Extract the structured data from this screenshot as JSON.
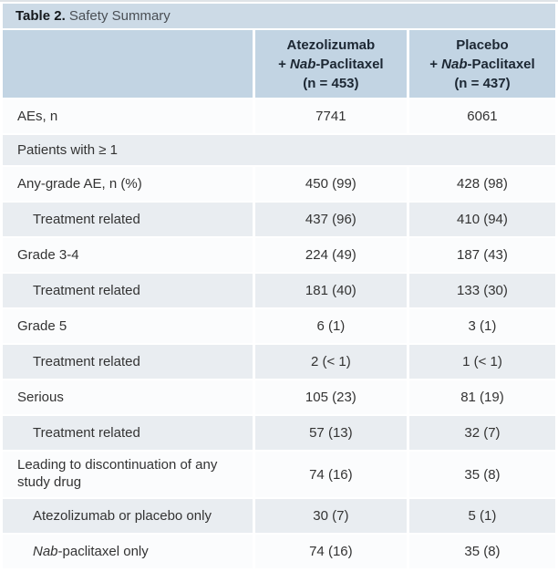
{
  "table": {
    "title": {
      "bold": "Table 2.",
      "rest": " Safety Summary"
    },
    "columns": [
      {
        "line1": "Atezolizumab",
        "plus": "+ ",
        "italic": "Nab",
        "rest": "-Paclitaxel",
        "n": "(n = 453)"
      },
      {
        "line1": "Placebo",
        "plus": "+ ",
        "italic": "Nab",
        "rest": "-Paclitaxel",
        "n": "(n = 437)"
      }
    ],
    "rows": [
      {
        "label": "AEs, n",
        "v1": "7741",
        "v2": "6061"
      },
      {
        "label": "Patients with ≥ 1"
      },
      {
        "label": "Any-grade AE, n (%)",
        "v1": "450 (99)",
        "v2": "428 (98)"
      },
      {
        "label": "Treatment related",
        "v1": "437 (96)",
        "v2": "410 (94)"
      },
      {
        "label": "Grade 3-4",
        "v1": "224 (49)",
        "v2": "187 (43)"
      },
      {
        "label": "Treatment related",
        "v1": "181 (40)",
        "v2": "133 (30)"
      },
      {
        "label": "Grade 5",
        "v1": "6 (1)",
        "v2": "3 (1)"
      },
      {
        "label": "Treatment related",
        "v1": "2 (< 1)",
        "v2": "1 (< 1)"
      },
      {
        "label": "Serious",
        "v1": "105 (23)",
        "v2": "81 (19)"
      },
      {
        "label": "Treatment related",
        "v1": "57 (13)",
        "v2": "32 (7)"
      },
      {
        "label": "Leading to discontinuation of any study drug",
        "v1": "74 (16)",
        "v2": "35 (8)"
      },
      {
        "label": "Atezolizumab or placebo only",
        "v1": "30 (7)",
        "v2": "5 (1)"
      },
      {
        "label_italic": "Nab",
        "label": "-paclitaxel only",
        "v1": "74 (16)",
        "v2": "35 (8)"
      }
    ],
    "colors": {
      "title_bar_bg": "#ccdae6",
      "header_bg": "#c2d4e3",
      "shaded_row_bg": "#e9edf1",
      "white_row_bg": "#fbfcfd",
      "body_text": "#333333",
      "header_text": "#1c2733"
    }
  }
}
